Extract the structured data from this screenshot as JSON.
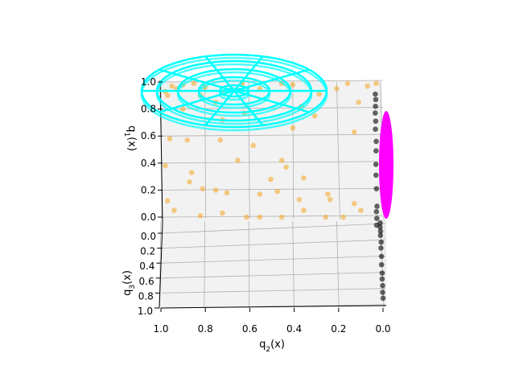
{
  "chart_data": {
    "type": "scatter",
    "projection": "3d",
    "xlabel": "q_2(x)",
    "ylabel": "q_3(x)",
    "zlabel": "q_1(x)",
    "x_ticks": [
      "1.0",
      "0.8",
      "0.6",
      "0.4",
      "0.2",
      "0.0"
    ],
    "y_ticks": [
      "0.0",
      "0.2",
      "0.4",
      "0.6",
      "0.8",
      "1.0"
    ],
    "z_ticks": [
      "0.0",
      "0.2",
      "0.4",
      "0.6",
      "0.8",
      "1.0"
    ],
    "xlim": [
      1.0,
      0.0
    ],
    "ylim": [
      0.0,
      1.0
    ],
    "zlim": [
      0.0,
      1.0
    ],
    "grid": true,
    "colors": {
      "orange_points": "#f5a623",
      "black_points": "#000000",
      "cyan_wireframe": "#00ffff",
      "magenta_surface": "#ff00ff",
      "pane": "#f2f2f2",
      "grid": "#b0b0b0"
    },
    "series": [
      {
        "kind": "scatter",
        "color": "orange",
        "points": [
          [
            0.95,
            0.0,
            0.97
          ],
          [
            0.93,
            0.0,
            0.95
          ],
          [
            0.98,
            0.0,
            0.93
          ],
          [
            0.9,
            0.0,
            0.98
          ],
          [
            0.97,
            0.0,
            0.9
          ],
          [
            0.85,
            0.0,
            0.99
          ],
          [
            0.8,
            0.0,
            0.96
          ],
          [
            0.72,
            0.0,
            0.92
          ],
          [
            0.63,
            0.0,
            0.99
          ],
          [
            0.55,
            0.0,
            0.95
          ],
          [
            0.45,
            0.0,
            0.99
          ],
          [
            0.4,
            0.0,
            0.98
          ],
          [
            0.36,
            0.0,
            0.82
          ],
          [
            0.28,
            0.0,
            0.91
          ],
          [
            0.2,
            0.0,
            0.95
          ],
          [
            0.15,
            0.0,
            0.99
          ],
          [
            0.06,
            0.0,
            0.97
          ],
          [
            0.02,
            0.0,
            0.99
          ],
          [
            0.1,
            0.0,
            0.85
          ],
          [
            0.3,
            0.0,
            0.75
          ],
          [
            0.62,
            0.0,
            0.77
          ],
          [
            0.75,
            0.0,
            0.85
          ],
          [
            0.82,
            0.0,
            0.9
          ],
          [
            0.9,
            0.0,
            0.8
          ],
          [
            0.12,
            0.0,
            0.63
          ],
          [
            0.96,
            0.0,
            0.58
          ],
          [
            0.88,
            0.0,
            0.57
          ],
          [
            0.73,
            0.0,
            0.57
          ],
          [
            0.58,
            0.0,
            0.53
          ],
          [
            0.98,
            0.0,
            0.38
          ],
          [
            0.86,
            0.0,
            0.33
          ],
          [
            0.65,
            0.0,
            0.42
          ],
          [
            0.43,
            0.0,
            0.37
          ],
          [
            0.87,
            0.0,
            0.26
          ],
          [
            0.81,
            0.0,
            0.21
          ],
          [
            0.75,
            0.0,
            0.2
          ],
          [
            0.97,
            0.0,
            0.12
          ],
          [
            0.94,
            0.0,
            0.05
          ],
          [
            0.82,
            0.0,
            0.01
          ],
          [
            0.72,
            0.0,
            0.03
          ],
          [
            0.7,
            0.0,
            0.18
          ],
          [
            0.55,
            0.0,
            0.17
          ],
          [
            0.47,
            0.0,
            0.19
          ],
          [
            0.55,
            0.0,
            0.0
          ],
          [
            0.61,
            0.0,
            0.0
          ],
          [
            0.45,
            0.0,
            0.0
          ],
          [
            0.35,
            0.0,
            0.05
          ],
          [
            0.25,
            0.0,
            0.0
          ],
          [
            0.17,
            0.0,
            0.0
          ],
          [
            0.23,
            0.0,
            0.13
          ],
          [
            0.35,
            0.0,
            0.29
          ],
          [
            0.37,
            0.0,
            0.13
          ],
          [
            0.24,
            0.0,
            0.17
          ],
          [
            0.12,
            0.0,
            0.1
          ],
          [
            0.09,
            0.0,
            0.05
          ],
          [
            0.5,
            0.0,
            0.28
          ],
          [
            0.45,
            0.0,
            0.42
          ],
          [
            0.4,
            0.0,
            0.66
          ],
          [
            0.72,
            0.0,
            0.72
          ]
        ]
      },
      {
        "kind": "scatter",
        "color": "black",
        "points": [
          [
            0.01,
            0.0,
            0.97
          ],
          [
            0.02,
            0.0,
            0.93
          ],
          [
            0.01,
            0.0,
            0.88
          ],
          [
            0.0,
            0.0,
            0.83
          ],
          [
            0.01,
            0.0,
            0.77
          ],
          [
            0.0,
            0.0,
            0.71
          ],
          [
            0.02,
            0.0,
            0.62
          ],
          [
            0.01,
            0.0,
            0.55
          ],
          [
            0.0,
            0.0,
            0.45
          ],
          [
            0.0,
            0.0,
            0.37
          ],
          [
            0.01,
            0.0,
            0.27
          ],
          [
            0.02,
            0.0,
            0.14
          ],
          [
            0.0,
            0.0,
            0.1
          ],
          [
            0.01,
            0.0,
            0.05
          ],
          [
            0.0,
            0.0,
            0.0
          ],
          [
            0.01,
            0.05,
            0.0
          ],
          [
            0.0,
            0.1,
            0.0
          ],
          [
            0.01,
            0.15,
            0.0
          ],
          [
            0.0,
            0.2,
            0.0
          ],
          [
            0.02,
            0.28,
            0.0
          ],
          [
            0.0,
            0.35,
            0.0
          ],
          [
            0.01,
            0.45,
            0.0
          ],
          [
            0.0,
            0.55,
            0.0
          ],
          [
            0.01,
            0.65,
            0.0
          ],
          [
            0.0,
            0.72,
            0.0
          ],
          [
            0.01,
            0.8,
            0.0
          ],
          [
            0.0,
            0.88,
            0.0
          ],
          [
            0.01,
            0.95,
            0.0
          ]
        ]
      },
      {
        "kind": "wireframe",
        "color": "cyan",
        "shape": "concentric-circles",
        "plane": "q_1=1"
      },
      {
        "kind": "surface",
        "color": "magenta",
        "shape": "ellipse",
        "plane": "q_2=0"
      }
    ]
  }
}
